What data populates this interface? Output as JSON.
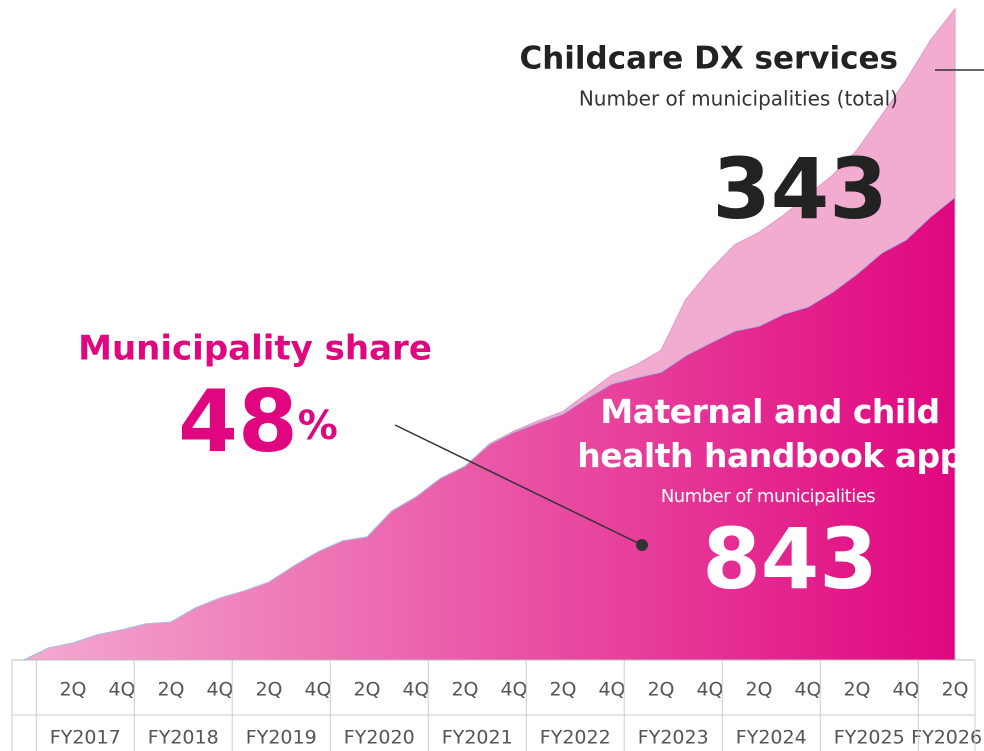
{
  "chart_data": {
    "type": "stacked-area",
    "categories": [
      null,
      null,
      "2Q",
      null,
      "4Q",
      null,
      "2Q",
      null,
      "4Q",
      null,
      "2Q",
      null,
      "4Q",
      null,
      "2Q",
      null,
      "4Q",
      null,
      "2Q",
      null,
      "4Q",
      null,
      "2Q",
      null,
      "4Q",
      null,
      "2Q",
      null,
      "4Q",
      null,
      "2Q",
      null,
      "4Q",
      null,
      "2Q",
      null,
      "4Q",
      null,
      "2Q"
    ],
    "fiscal_years": [
      "FY2017",
      "FY2018",
      "FY2019",
      "FY2020",
      "FY2021",
      "FY2022",
      "FY2023",
      "FY2024",
      "FY2025",
      "FY2026"
    ],
    "ylim": [
      0,
      1200
    ],
    "series": [
      {
        "name": "Maternal and child\nhealth handbook app",
        "label": "Number of municipalities",
        "color": "#e0067f",
        "color_start": "#f4a9d0",
        "values": [
          0,
          22,
          31,
          46,
          55,
          66,
          69,
          95,
          113,
          126,
          142,
          171,
          197,
          217,
          224,
          271,
          297,
          331,
          353,
          393,
          415,
          432,
          448,
          477,
          503,
          514,
          524,
          554,
          577,
          599,
          608,
          630,
          643,
          670,
          703,
          741,
          765,
          807,
          843
        ]
      },
      {
        "name": "Childcare DX services",
        "label": "Number of municipalities (total)",
        "color": "#f2accf",
        "values": [
          0,
          0,
          0,
          0,
          0,
          0,
          0,
          0,
          0,
          0,
          0,
          0,
          0,
          0,
          0,
          0,
          0,
          0,
          0,
          1,
          2,
          4,
          5,
          9,
          16,
          24,
          40,
          102,
          133,
          157,
          171,
          180,
          204,
          213,
          226,
          251,
          291,
          322,
          343
        ]
      }
    ],
    "annotations": {
      "share_title": "Municipality share",
      "share_value": 48,
      "share_unit": "%"
    }
  }
}
